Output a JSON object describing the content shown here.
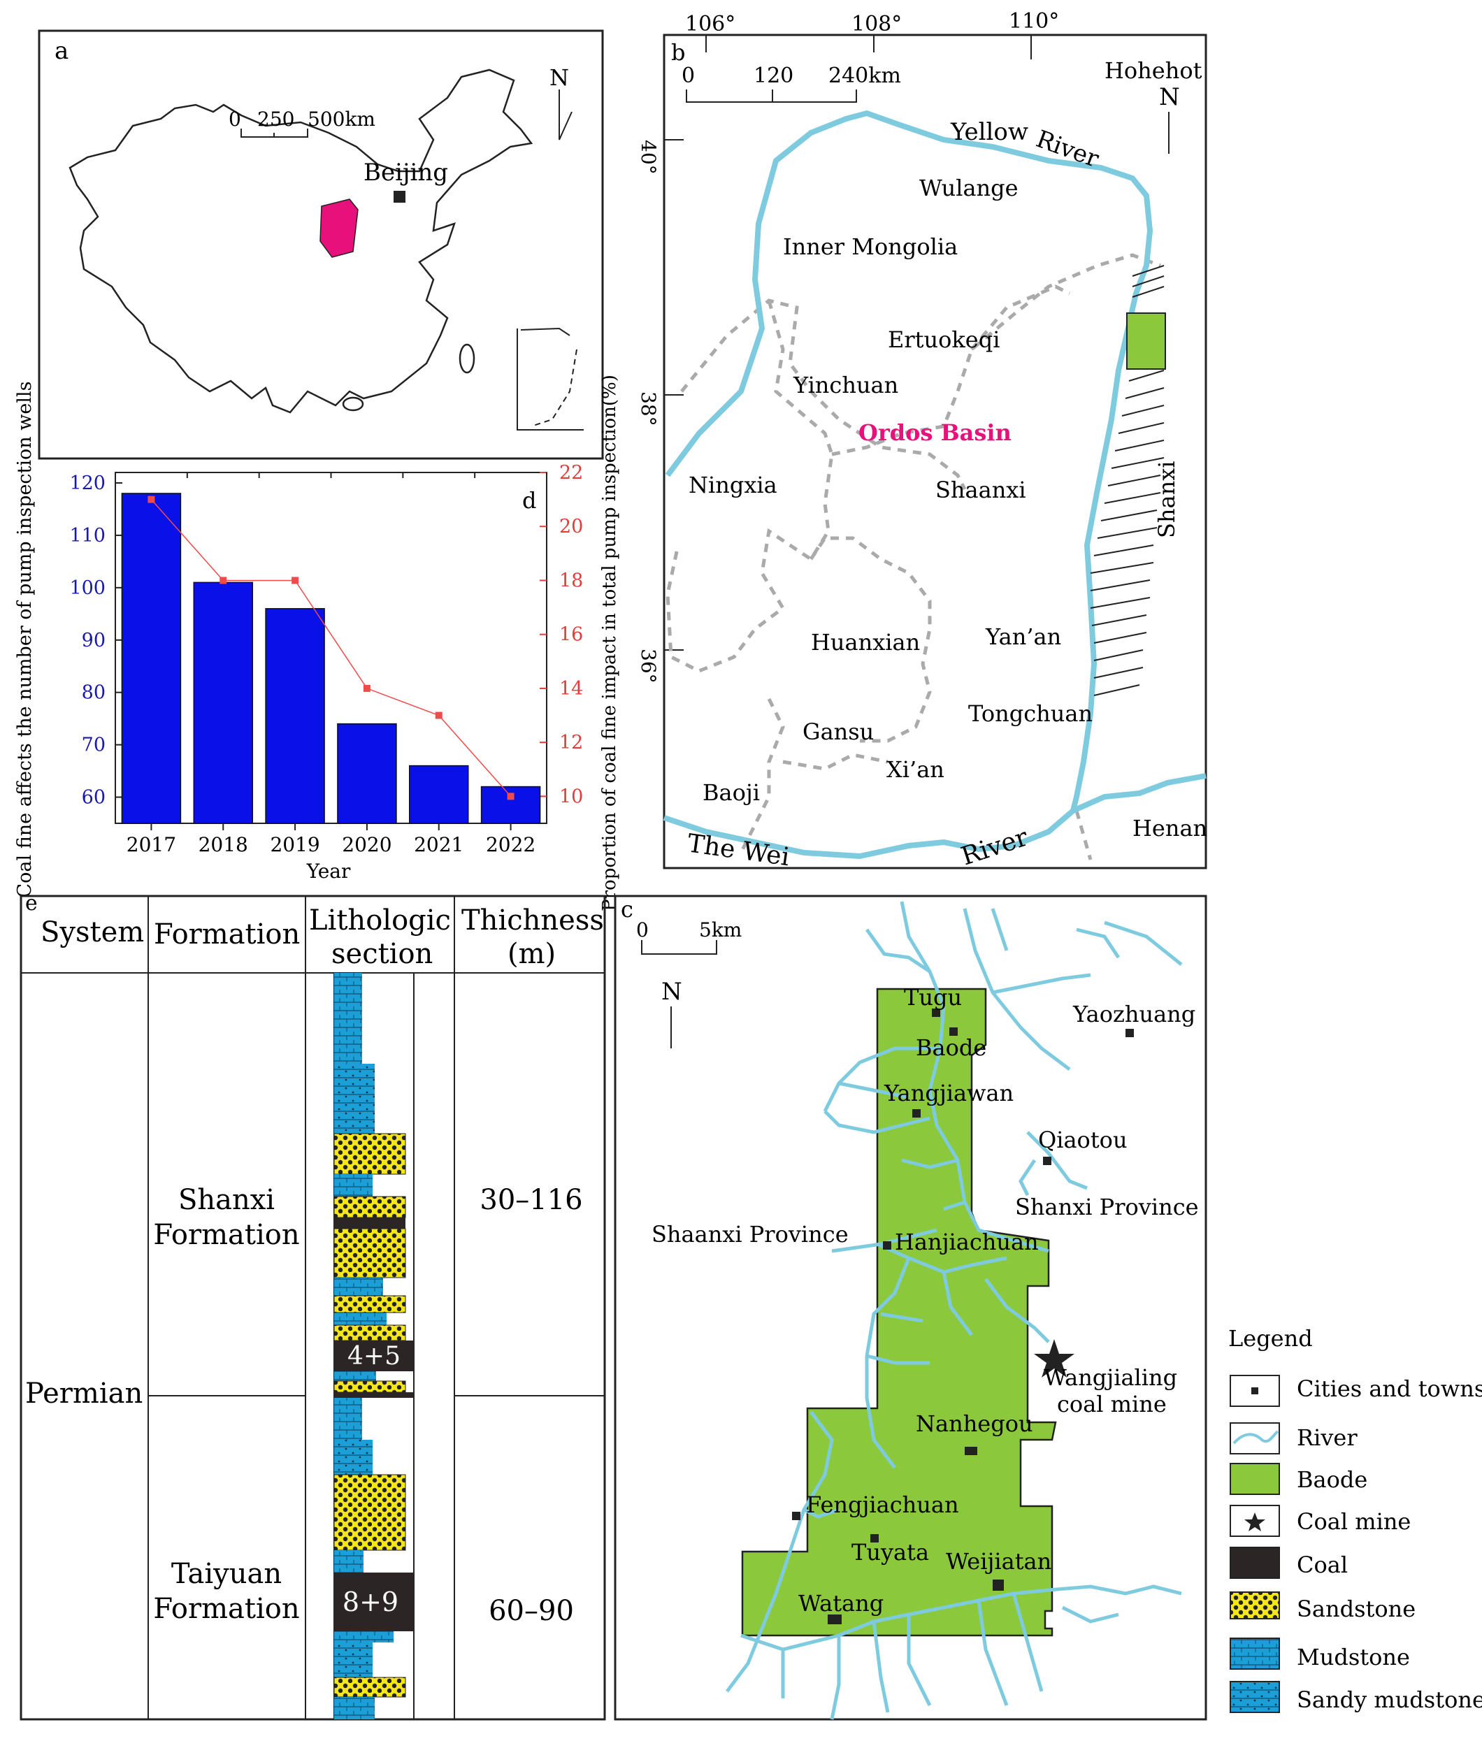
{
  "panel_a": {
    "label": "a",
    "scale_ticks": [
      "0",
      "250",
      "500km"
    ],
    "north": "N",
    "city": "Beijing",
    "colors": {
      "ordos": "#e8117c",
      "border": "#222222"
    }
  },
  "panel_b": {
    "label": "b",
    "longitudes": [
      "106°",
      "108°",
      "110°"
    ],
    "latitudes": [
      "40°",
      "38°",
      "36°"
    ],
    "scale_ticks": [
      "0",
      "120",
      "240km"
    ],
    "north": "N",
    "places": {
      "hohehot": "Hohehot",
      "wulange": "Wulange",
      "inner_mongolia": "Inner Mongolia",
      "ertuokeqi": "Ertuokeqi",
      "yinchuan": "Yinchuan",
      "ningxia": "Ningxia",
      "shaanxi": "Shaanxi",
      "huanxian": "Huanxian",
      "yanan": "Yan’an",
      "tongchuan": "Tongchuan",
      "gansu": "Gansu",
      "xian": "Xi’an",
      "baoji": "Baoji",
      "henan": "Henan",
      "shanxi": "Shanxi"
    },
    "basin_name": "Ordos Basin",
    "yellow_river": [
      "Yellow",
      "River"
    ],
    "wei_river": [
      "The Wei",
      "River"
    ],
    "colors": {
      "river": "#7ecbe0",
      "basin_label": "#e8117c",
      "baode": "#8cc83c",
      "boundary": "#aaaaaa"
    }
  },
  "panel_c": {
    "label": "c",
    "scale_ticks": [
      "0",
      "5km"
    ],
    "north": "N",
    "towns": {
      "tugu": "Tugu",
      "baode": "Baode",
      "yaozhuang": "Yaozhuang",
      "yangjiawan": "Yangjiawan",
      "qiaotou": "Qiaotou",
      "shanxi_province": "Shanxi Province",
      "shaanxi_province": "Shaanxi Province",
      "hanjiachuan": "Hanjiachuan",
      "nanhegou": "Nanhegou",
      "fengjiachuan": "Fengjiachuan",
      "tuyata": "Tuyata",
      "weijiatan": "Weijiatan",
      "watang": "Watang"
    },
    "mine": [
      "Wangjialing",
      "coal mine"
    ],
    "colors": {
      "area": "#8cc83c",
      "river": "#7ecbe0"
    }
  },
  "legend": {
    "title": "Legend",
    "items": [
      {
        "label": "Cities and towns",
        "symbol": "town"
      },
      {
        "label": "River",
        "symbol": "river"
      },
      {
        "label": "Baode",
        "symbol": "area"
      },
      {
        "label": "Coal mine",
        "symbol": "star"
      },
      {
        "label": "Coal",
        "symbol": "coal"
      },
      {
        "label": "Sandstone",
        "symbol": "sandstone"
      },
      {
        "label": "Mudstone",
        "symbol": "mudstone"
      },
      {
        "label": "Sandy mudstone",
        "symbol": "sandy-mudstone"
      }
    ],
    "colors": {
      "coal": "#2b2525",
      "sandstone": "#f5e61a",
      "mudstone": "#1b9fd6"
    }
  },
  "panel_d": {
    "label": "d",
    "chart_data": {
      "type": "bar",
      "categories": [
        "2017",
        "2018",
        "2019",
        "2020",
        "2021",
        "2022"
      ],
      "series": [
        {
          "name": "",
          "axis": "left",
          "type": "bar",
          "values": [
            118,
            101,
            96,
            74,
            66,
            62
          ],
          "color": "#0a10e8"
        },
        {
          "name": "",
          "axis": "right",
          "type": "line",
          "values": [
            21,
            18,
            18,
            14,
            13,
            10
          ],
          "color": "#f04a4a"
        }
      ],
      "xlabel": "Year",
      "ylabel": "Coal fine affects the number of pump inspection wells",
      "y2label": "Proportion of coal fine impact in total pump inspection(%)",
      "ylim": [
        55,
        122
      ],
      "y2lim": [
        9,
        22
      ],
      "yticks": [
        "60",
        "70",
        "80",
        "90",
        "100",
        "110",
        "120"
      ],
      "y2ticks": [
        "10",
        "12",
        "14",
        "16",
        "18",
        "20",
        "22"
      ]
    }
  },
  "panel_e": {
    "label": "e",
    "headers": {
      "system": "System",
      "formation": "Formation",
      "lithologic": [
        "Lithologic",
        "section"
      ],
      "thickness": [
        "Thichness",
        "(m)"
      ]
    },
    "system": "Permian",
    "formations": [
      {
        "name": [
          "Shanxi",
          "Formation"
        ],
        "thickness": "30–116",
        "coal_seam": "4+5"
      },
      {
        "name": [
          "Taiyuan",
          "Formation"
        ],
        "thickness": "60–90",
        "coal_seam": "8+9"
      }
    ]
  }
}
